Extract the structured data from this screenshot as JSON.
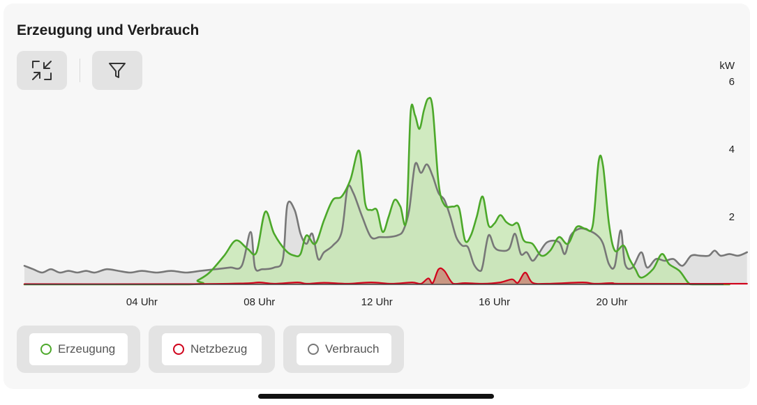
{
  "header": {
    "title": "Erzeugung und Verbrauch",
    "toolbar": [
      {
        "name": "collapse-button",
        "icon": "collapse-arrows-icon"
      },
      {
        "name": "filter-button",
        "icon": "filter-funnel-icon"
      }
    ]
  },
  "legend": [
    {
      "label": "Erzeugung",
      "color": "#4ca82a",
      "icon": "green-ring-icon"
    },
    {
      "label": "Netzbezug",
      "color": "#d0021b",
      "icon": "red-ring-icon"
    },
    {
      "label": "Verbrauch",
      "color": "#777777",
      "icon": "gray-ring-icon"
    }
  ],
  "chart_data": {
    "type": "area",
    "title": "Erzeugung und Verbrauch",
    "ylabel": "kW",
    "xlabel": "",
    "xlim": [
      0,
      24
    ],
    "ylim": [
      0,
      6
    ],
    "x_ticks": [
      {
        "x": 4,
        "label": "04 Uhr"
      },
      {
        "x": 8,
        "label": "08 Uhr"
      },
      {
        "x": 12,
        "label": "12 Uhr"
      },
      {
        "x": 16,
        "label": "16 Uhr"
      },
      {
        "x": 20,
        "label": "20 Uhr"
      }
    ],
    "y_ticks": [
      {
        "y": 2,
        "label": "2"
      },
      {
        "y": 4,
        "label": "4"
      },
      {
        "y": 6,
        "label": "6"
      }
    ],
    "grid": false,
    "legend_position": "bottom-left",
    "series": [
      {
        "name": "Erzeugung",
        "color": "#4ca82a",
        "fill": "#c3e6ae",
        "points": [
          [
            0,
            0
          ],
          [
            5.6,
            0
          ],
          [
            5.9,
            0.12
          ],
          [
            6.3,
            0.35
          ],
          [
            6.8,
            0.85
          ],
          [
            7.2,
            1.3
          ],
          [
            7.6,
            1.05
          ],
          [
            7.9,
            0.95
          ],
          [
            8.2,
            2.15
          ],
          [
            8.5,
            1.5
          ],
          [
            8.9,
            1.0
          ],
          [
            9.2,
            0.85
          ],
          [
            9.4,
            0.9
          ],
          [
            9.6,
            1.45
          ],
          [
            9.9,
            1.2
          ],
          [
            10.2,
            1.9
          ],
          [
            10.5,
            2.5
          ],
          [
            10.8,
            2.6
          ],
          [
            11.1,
            3.1
          ],
          [
            11.4,
            3.95
          ],
          [
            11.6,
            2.4
          ],
          [
            11.8,
            2.2
          ],
          [
            12.0,
            2.2
          ],
          [
            12.2,
            1.55
          ],
          [
            12.4,
            2.0
          ],
          [
            12.6,
            2.5
          ],
          [
            12.8,
            2.3
          ],
          [
            13.0,
            1.9
          ],
          [
            13.15,
            5.1
          ],
          [
            13.3,
            5.0
          ],
          [
            13.45,
            4.6
          ],
          [
            13.6,
            5.15
          ],
          [
            13.75,
            5.5
          ],
          [
            13.9,
            5.2
          ],
          [
            14.1,
            3.0
          ],
          [
            14.3,
            2.35
          ],
          [
            14.6,
            2.3
          ],
          [
            14.8,
            2.25
          ],
          [
            15.0,
            1.3
          ],
          [
            15.2,
            1.45
          ],
          [
            15.4,
            2.0
          ],
          [
            15.6,
            2.6
          ],
          [
            15.8,
            1.75
          ],
          [
            16.0,
            1.8
          ],
          [
            16.2,
            2.05
          ],
          [
            16.4,
            1.85
          ],
          [
            16.6,
            1.75
          ],
          [
            16.8,
            1.8
          ],
          [
            17.0,
            1.3
          ],
          [
            17.3,
            1.2
          ],
          [
            17.6,
            0.85
          ],
          [
            17.9,
            1.0
          ],
          [
            18.2,
            1.4
          ],
          [
            18.5,
            1.2
          ],
          [
            18.8,
            1.7
          ],
          [
            19.1,
            1.65
          ],
          [
            19.35,
            1.75
          ],
          [
            19.55,
            3.65
          ],
          [
            19.7,
            3.5
          ],
          [
            19.9,
            1.8
          ],
          [
            20.1,
            1.0
          ],
          [
            20.4,
            1.15
          ],
          [
            20.6,
            0.75
          ],
          [
            20.8,
            0.45
          ],
          [
            21.0,
            0.2
          ],
          [
            21.4,
            0.45
          ],
          [
            21.7,
            0.9
          ],
          [
            21.95,
            0.6
          ],
          [
            22.3,
            0.4
          ],
          [
            22.6,
            0.05
          ],
          [
            22.8,
            0
          ],
          [
            24,
            0
          ]
        ]
      },
      {
        "name": "Verbrauch",
        "color": "#777777",
        "fill": "#dedede",
        "points": [
          [
            0,
            0.55
          ],
          [
            0.3,
            0.45
          ],
          [
            0.6,
            0.35
          ],
          [
            0.9,
            0.45
          ],
          [
            1.2,
            0.35
          ],
          [
            1.5,
            0.4
          ],
          [
            1.8,
            0.35
          ],
          [
            2.1,
            0.4
          ],
          [
            2.4,
            0.35
          ],
          [
            2.8,
            0.45
          ],
          [
            3.2,
            0.4
          ],
          [
            3.6,
            0.35
          ],
          [
            4.0,
            0.4
          ],
          [
            4.5,
            0.35
          ],
          [
            5.0,
            0.4
          ],
          [
            5.5,
            0.35
          ],
          [
            6.0,
            0.4
          ],
          [
            6.5,
            0.45
          ],
          [
            7.0,
            0.5
          ],
          [
            7.4,
            0.55
          ],
          [
            7.7,
            1.55
          ],
          [
            7.85,
            0.5
          ],
          [
            8.1,
            0.45
          ],
          [
            8.5,
            0.5
          ],
          [
            8.8,
            0.75
          ],
          [
            8.95,
            2.35
          ],
          [
            9.2,
            2.2
          ],
          [
            9.4,
            1.5
          ],
          [
            9.6,
            1.2
          ],
          [
            9.8,
            1.5
          ],
          [
            10.0,
            0.75
          ],
          [
            10.2,
            0.95
          ],
          [
            10.5,
            1.15
          ],
          [
            10.8,
            1.55
          ],
          [
            11.0,
            2.85
          ],
          [
            11.2,
            2.7
          ],
          [
            11.5,
            2.0
          ],
          [
            11.8,
            1.4
          ],
          [
            12.1,
            1.4
          ],
          [
            12.4,
            1.4
          ],
          [
            12.7,
            1.45
          ],
          [
            12.9,
            1.6
          ],
          [
            13.1,
            2.2
          ],
          [
            13.3,
            3.55
          ],
          [
            13.5,
            3.3
          ],
          [
            13.7,
            3.55
          ],
          [
            13.9,
            3.2
          ],
          [
            14.1,
            2.7
          ],
          [
            14.3,
            2.5
          ],
          [
            14.5,
            2.0
          ],
          [
            14.7,
            1.4
          ],
          [
            14.9,
            1.15
          ],
          [
            15.1,
            1.1
          ],
          [
            15.3,
            0.6
          ],
          [
            15.5,
            0.4
          ],
          [
            15.6,
            0.55
          ],
          [
            15.8,
            1.45
          ],
          [
            16.0,
            1.1
          ],
          [
            16.2,
            1.0
          ],
          [
            16.5,
            1.05
          ],
          [
            16.7,
            1.5
          ],
          [
            16.9,
            0.9
          ],
          [
            17.1,
            0.95
          ],
          [
            17.3,
            0.7
          ],
          [
            17.5,
            0.9
          ],
          [
            17.8,
            1.25
          ],
          [
            18.2,
            1.25
          ],
          [
            18.4,
            0.9
          ],
          [
            18.6,
            1.45
          ],
          [
            18.9,
            1.65
          ],
          [
            19.2,
            1.6
          ],
          [
            19.5,
            1.45
          ],
          [
            19.7,
            1.2
          ],
          [
            19.9,
            0.6
          ],
          [
            20.1,
            0.55
          ],
          [
            20.3,
            1.6
          ],
          [
            20.45,
            0.6
          ],
          [
            20.7,
            0.5
          ],
          [
            21.0,
            0.95
          ],
          [
            21.2,
            0.5
          ],
          [
            21.5,
            0.75
          ],
          [
            21.8,
            0.7
          ],
          [
            22.1,
            0.75
          ],
          [
            22.4,
            0.55
          ],
          [
            22.7,
            0.85
          ],
          [
            23.0,
            0.85
          ],
          [
            23.3,
            0.85
          ],
          [
            23.5,
            1.0
          ],
          [
            23.7,
            0.85
          ],
          [
            24.0,
            0.9
          ],
          [
            24.3,
            0.85
          ],
          [
            24.6,
            0.95
          ]
        ]
      },
      {
        "name": "Netzbezug",
        "color": "#d0021b",
        "fill": "#c98a78",
        "points": [
          [
            0,
            0.01
          ],
          [
            5.5,
            0.01
          ],
          [
            7.5,
            0.03
          ],
          [
            8.0,
            0.06
          ],
          [
            8.5,
            0.02
          ],
          [
            9.3,
            0.06
          ],
          [
            9.6,
            0.02
          ],
          [
            10.2,
            0.05
          ],
          [
            11.0,
            0.02
          ],
          [
            11.8,
            0.06
          ],
          [
            12.5,
            0.02
          ],
          [
            13.2,
            0.06
          ],
          [
            13.5,
            0.02
          ],
          [
            13.75,
            0.18
          ],
          [
            13.9,
            0.04
          ],
          [
            14.1,
            0.45
          ],
          [
            14.3,
            0.4
          ],
          [
            14.6,
            0.02
          ],
          [
            15.0,
            0.04
          ],
          [
            15.6,
            0.02
          ],
          [
            16.2,
            0.06
          ],
          [
            16.6,
            0.15
          ],
          [
            16.8,
            0.05
          ],
          [
            17.05,
            0.35
          ],
          [
            17.3,
            0.05
          ],
          [
            17.8,
            0.02
          ],
          [
            19.0,
            0.06
          ],
          [
            19.4,
            0.02
          ],
          [
            20.0,
            0.04
          ],
          [
            20.5,
            0.02
          ],
          [
            24.6,
            0.02
          ]
        ]
      }
    ]
  }
}
